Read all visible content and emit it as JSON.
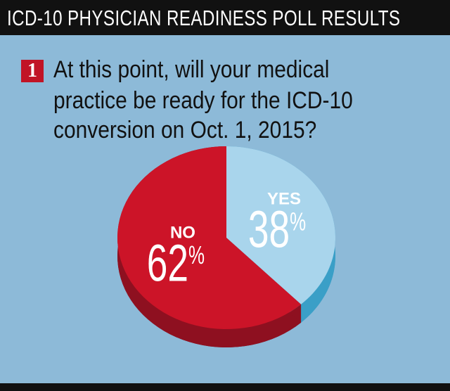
{
  "chart_data": {
    "type": "pie",
    "title": "ICD-10 PHYSICIAN READINESS POLL RESULTS",
    "question_number": "1",
    "question": [
      "At this point, will your medical",
      "practice be ready for the ICD-10",
      "conversion on Oct. 1, 2015?"
    ],
    "categories": [
      "YES",
      "NO"
    ],
    "values": [
      38,
      62
    ],
    "value_labels": [
      "38%",
      "62%"
    ],
    "colors": [
      "#a9d5ec",
      "#cc1428"
    ],
    "side_colors": [
      "#3a9fc7",
      "#8e1020"
    ]
  }
}
